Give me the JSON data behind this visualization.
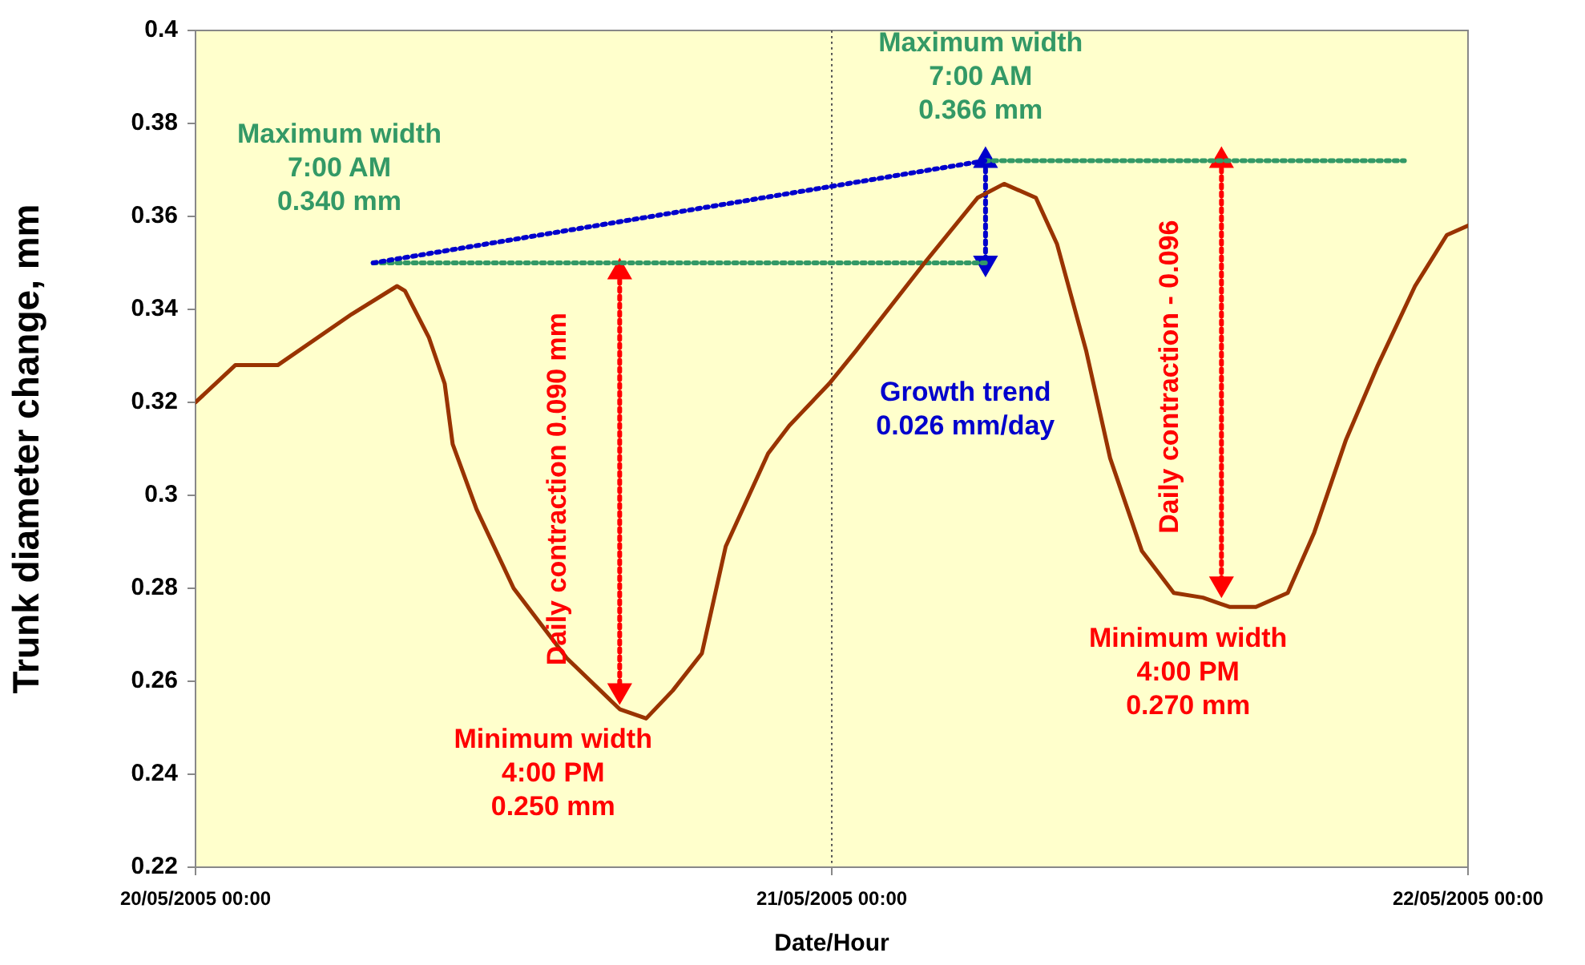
{
  "chart_data": {
    "type": "line",
    "xlabel": "Date/Hour",
    "ylabel": "Trunk diameter change, mm",
    "xlim": [
      "2005-05-20T00:00",
      "2005-05-22T00:00"
    ],
    "xticks": [
      {
        "value": "2005-05-20T00:00",
        "label": "20/05/2005 00:00"
      },
      {
        "value": "2005-05-21T00:00",
        "label": "21/05/2005 00:00"
      },
      {
        "value": "2005-05-22T00:00",
        "label": "22/05/2005 00:00"
      }
    ],
    "ylim": [
      0.22,
      0.4
    ],
    "yticks": [
      0.22,
      0.24,
      0.26,
      0.28,
      0.3,
      0.32,
      0.34,
      0.36,
      0.38,
      0.4
    ],
    "grid": false,
    "legend": false,
    "line_style": "solid",
    "ref_lines": [
      {
        "axis": "x",
        "value": "2005-05-21T00:00",
        "color": "#555555",
        "line_style": "dotted"
      }
    ],
    "series": [
      {
        "color": "#993300",
        "x": [
          "2005-05-20T00:00",
          "2005-05-20T01:30",
          "2005-05-20T03:06",
          "2005-05-20T05:54",
          "2005-05-20T07:36",
          "2005-05-20T07:54",
          "2005-05-20T08:48",
          "2005-05-20T09:24",
          "2005-05-20T09:42",
          "2005-05-20T10:36",
          "2005-05-20T12:00",
          "2005-05-20T14:00",
          "2005-05-20T16:00",
          "2005-05-20T17:00",
          "2005-05-20T18:00",
          "2005-05-20T19:06",
          "2005-05-20T20:00",
          "2005-05-20T21:36",
          "2005-05-20T22:24",
          "2005-05-20T22:54",
          "2005-05-20T23:54",
          "2005-05-21T00:54",
          "2005-05-21T03:30",
          "2005-05-21T05:30",
          "2005-05-21T06:30",
          "2005-05-21T07:42",
          "2005-05-21T08:30",
          "2005-05-21T09:36",
          "2005-05-21T10:30",
          "2005-05-21T11:42",
          "2005-05-21T12:54",
          "2005-05-21T14:00",
          "2005-05-21T15:00",
          "2005-05-21T16:00",
          "2005-05-21T17:12",
          "2005-05-21T18:12",
          "2005-05-21T19:24",
          "2005-05-21T20:36",
          "2005-05-21T22:00",
          "2005-05-21T23:12",
          "2005-05-22T00:00"
        ],
        "values": [
          0.32,
          0.328,
          0.328,
          0.339,
          0.345,
          0.344,
          0.334,
          0.324,
          0.311,
          0.297,
          0.28,
          0.265,
          0.254,
          0.252,
          0.258,
          0.266,
          0.289,
          0.309,
          0.315,
          0.318,
          0.324,
          0.331,
          0.35,
          0.364,
          0.367,
          0.364,
          0.354,
          0.331,
          0.308,
          0.288,
          0.279,
          0.278,
          0.276,
          0.276,
          0.279,
          0.292,
          0.312,
          0.328,
          0.345,
          0.356,
          0.358
        ]
      },
      {
        "color": "#0000cc",
        "x": [
          "2005-05-20T06:42",
          "2005-05-21T05:48"
        ],
        "values": [
          0.35,
          0.372
        ],
        "line_style": "dotted"
      },
      {
        "color": "#339966",
        "x": [
          "2005-05-20T06:42",
          "2005-05-21T05:48"
        ],
        "values": [
          0.35,
          0.35
        ],
        "line_style": "dotted"
      },
      {
        "color": "#339966",
        "x": [
          "2005-05-21T05:48",
          "2005-05-21T21:36"
        ],
        "values": [
          0.372,
          0.372
        ],
        "line_style": "dotted"
      },
      {
        "color": "#0000cc",
        "x": [
          "2005-05-21T05:48",
          "2005-05-21T05:48"
        ],
        "values": [
          0.372,
          0.35
        ],
        "line_style": "dotted",
        "marker": "triangle"
      },
      {
        "color": "#ff0000",
        "x": [
          "2005-05-20T16:00",
          "2005-05-20T16:00"
        ],
        "values": [
          0.348,
          0.258
        ],
        "line_style": "dotted",
        "marker": "triangle"
      },
      {
        "color": "#ff0000",
        "x": [
          "2005-05-21T14:42",
          "2005-05-21T14:42"
        ],
        "values": [
          0.372,
          0.281
        ],
        "line_style": "dotted",
        "marker": "triangle"
      }
    ],
    "annotations": [
      "Maximum width\n7:00 AM\n0.340 mm",
      "Maximum width\n7:00 AM\n0.366 mm",
      "Daily contraction 0.090 mm",
      "Daily contraction - 0.096",
      "Minimum width\n4:00 PM\n0.250 mm",
      "Minimum width\n4:00 PM\n0.270 mm",
      "Growth trend\n0.026 mm/day"
    ]
  }
}
